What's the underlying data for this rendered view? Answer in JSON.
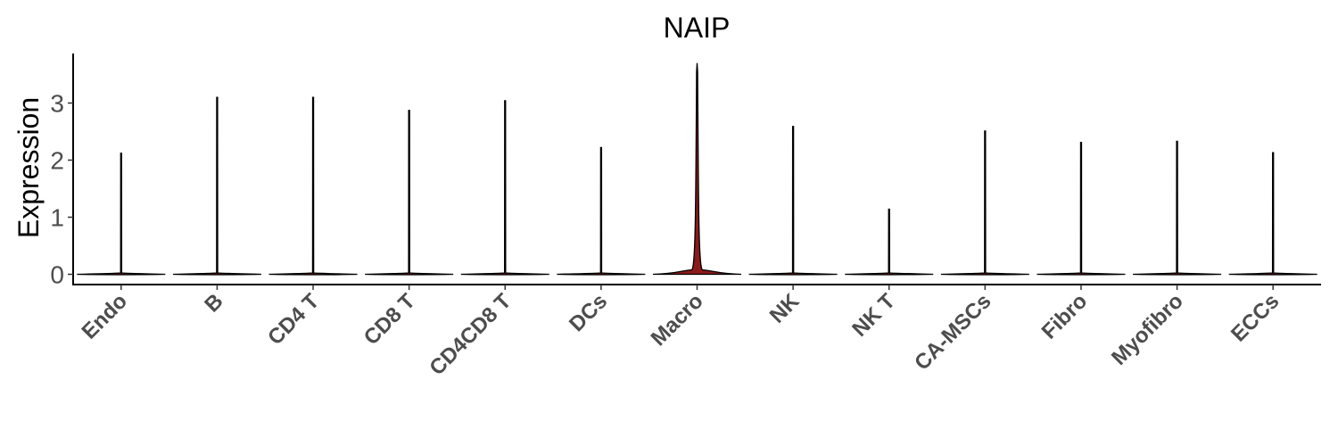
{
  "chart_data": {
    "type": "violin",
    "title": "NAIP",
    "ylabel": "Expression",
    "xlabel": "",
    "ylim": [
      -0.15,
      3.85
    ],
    "yticks": [
      0,
      1,
      2,
      3
    ],
    "categories": [
      "Endo",
      "B",
      "CD4 T",
      "CD8 T",
      "CD4CD8 T",
      "DCs",
      "Macro",
      "NK",
      "NK T",
      "CA-MSCs",
      "Fibro",
      "Myofibro",
      "ECCs"
    ],
    "max_values": [
      2.12,
      3.1,
      3.1,
      2.87,
      3.04,
      2.22,
      3.7,
      2.59,
      1.14,
      2.51,
      2.31,
      2.33,
      2.13
    ],
    "fill_color": "#8b1a1a",
    "outline_color": "#000000",
    "grid": false,
    "legend": "none"
  }
}
